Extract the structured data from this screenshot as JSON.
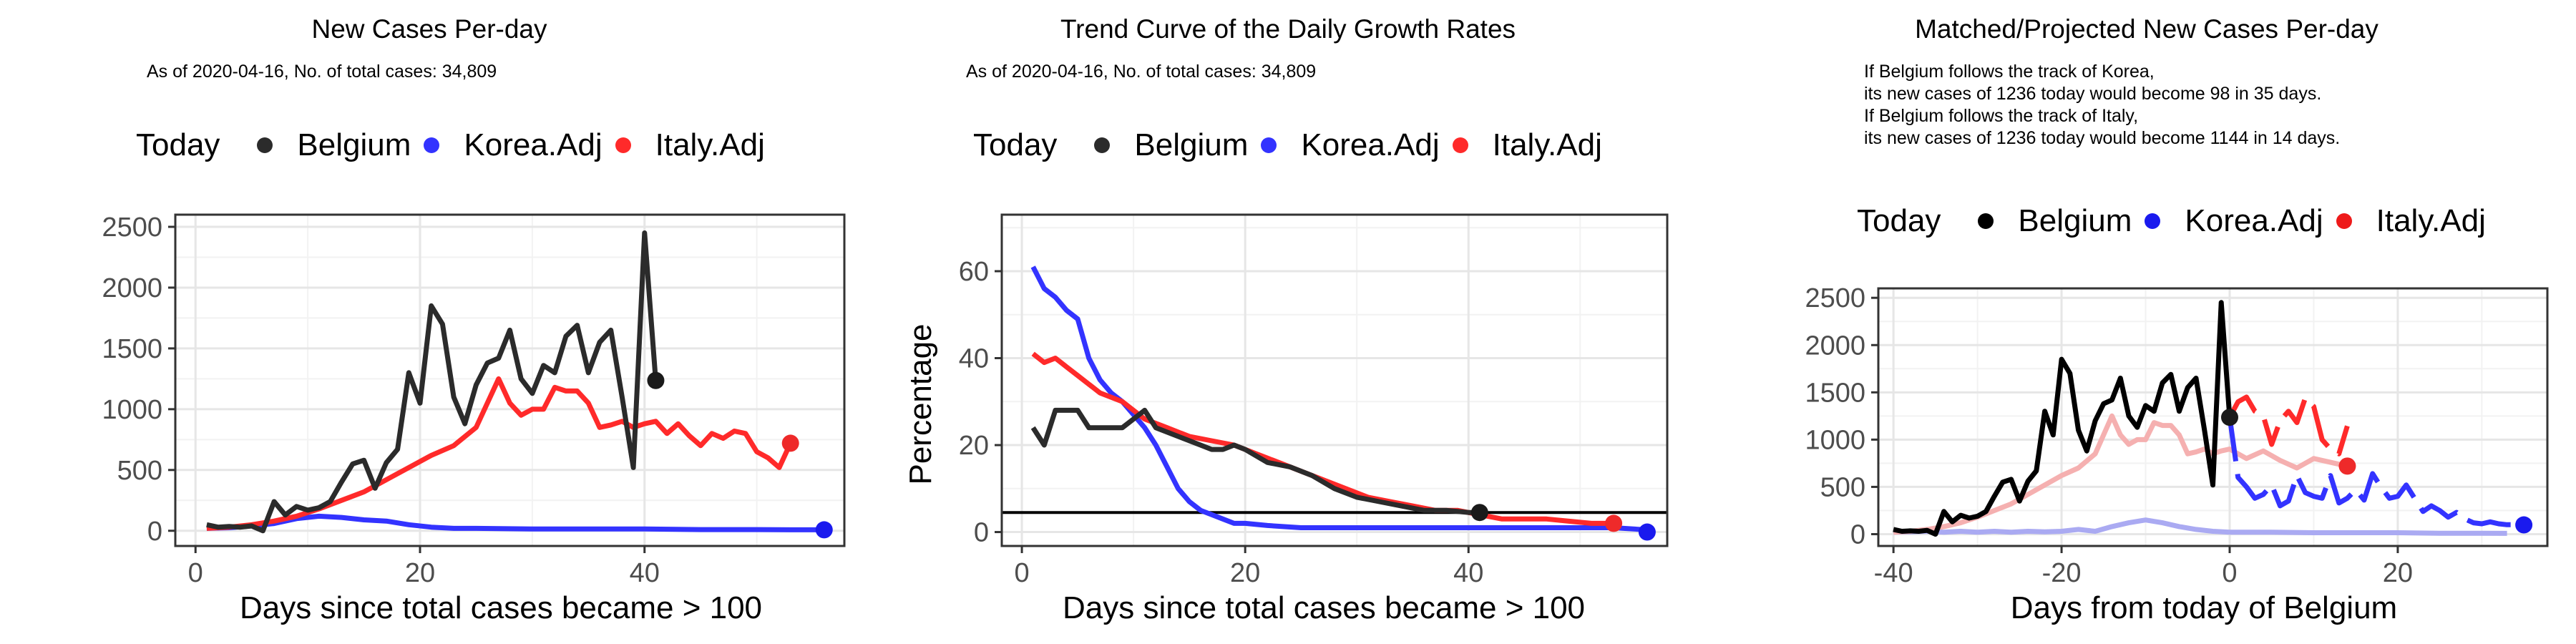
{
  "legend_labels": {
    "today": "Today",
    "belgium": "Belgium",
    "korea": "Korea.Adj",
    "italy": "Italy.Adj"
  },
  "colors": {
    "belgium": "#2b2b2b",
    "belgium_solid": "#000000",
    "korea": "#3333ff",
    "korea_light": "#aaaaf2",
    "italy": "#ff2a2a",
    "italy_light": "#f5b0b0",
    "grid_major": "#e6e6e6",
    "grid_minor": "#f2f2f2"
  },
  "chart_data": [
    {
      "type": "line",
      "title": "New Cases Per-day",
      "subtitle": "As of 2020-04-16, No. of total cases: 34,809",
      "xlabel": "Days since total cases became > 100",
      "ylabel": "",
      "xlim": [
        -1.8,
        57.8
      ],
      "ylim": [
        -125,
        2600
      ],
      "xticks": [
        0,
        20,
        40
      ],
      "yticks": [
        0,
        500,
        1000,
        1500,
        2000,
        2500
      ],
      "series": [
        {
          "name": "Belgium",
          "role": "belgium",
          "x": [
            1,
            2,
            3,
            4,
            5,
            6,
            7,
            8,
            9,
            10,
            11,
            12,
            13,
            14,
            15,
            16,
            17,
            18,
            19,
            20,
            21,
            22,
            23,
            24,
            25,
            26,
            27,
            28,
            29,
            30,
            31,
            32,
            33,
            34,
            35,
            36,
            37,
            38,
            39,
            40,
            41
          ],
          "y": [
            50,
            30,
            35,
            30,
            40,
            0,
            240,
            130,
            200,
            170,
            190,
            240,
            400,
            550,
            580,
            350,
            560,
            670,
            1300,
            1050,
            1850,
            1700,
            1100,
            880,
            1200,
            1380,
            1420,
            1650,
            1250,
            1130,
            1360,
            1300,
            1600,
            1690,
            1300,
            1550,
            1650,
            1100,
            520,
            2450,
            1236
          ]
        },
        {
          "name": "Korea.Adj",
          "role": "korea",
          "x": [
            1,
            3,
            5,
            7,
            9,
            11,
            13,
            15,
            17,
            19,
            21,
            23,
            25,
            30,
            35,
            40,
            45,
            50,
            53,
            56
          ],
          "y": [
            20,
            25,
            40,
            60,
            100,
            120,
            110,
            90,
            80,
            50,
            30,
            20,
            20,
            15,
            15,
            15,
            10,
            10,
            8,
            8
          ]
        },
        {
          "name": "Italy.Adj",
          "role": "italy",
          "x": [
            1,
            3,
            5,
            7,
            9,
            11,
            13,
            15,
            17,
            19,
            21,
            23,
            25,
            27,
            28,
            29,
            30,
            31,
            32,
            33,
            34,
            35,
            36,
            37,
            38,
            39,
            40,
            41,
            42,
            43,
            44,
            45,
            46,
            47,
            48,
            49,
            50,
            51,
            52,
            53
          ],
          "y": [
            20,
            30,
            50,
            80,
            120,
            180,
            250,
            320,
            420,
            520,
            620,
            700,
            850,
            1250,
            1050,
            950,
            1000,
            1000,
            1180,
            1150,
            1150,
            1050,
            850,
            870,
            900,
            850,
            880,
            900,
            800,
            880,
            780,
            700,
            800,
            760,
            820,
            800,
            650,
            600,
            520,
            720
          ]
        }
      ],
      "today_points": [
        {
          "name": "Belgium",
          "x": 41,
          "y": 1236
        },
        {
          "name": "Korea.Adj",
          "x": 56,
          "y": 8
        },
        {
          "name": "Italy.Adj",
          "x": 53,
          "y": 720
        }
      ]
    },
    {
      "type": "line",
      "title": "Trend Curve of the Daily Growth Rates",
      "subtitle": "As of 2020-04-16, No. of total cases: 34,809",
      "xlabel": "Days since total cases became > 100",
      "ylabel": "Percentage",
      "xlim": [
        -1.8,
        57.8
      ],
      "ylim": [
        -3.2,
        73
      ],
      "xticks": [
        0,
        20,
        40
      ],
      "yticks": [
        0,
        20,
        40,
        60
      ],
      "hline": 4.5,
      "series": [
        {
          "name": "Belgium",
          "role": "belgium",
          "x": [
            1,
            2,
            3,
            4,
            5,
            6,
            7,
            8,
            9,
            10,
            11,
            12,
            14,
            16,
            17,
            18,
            19,
            20,
            22,
            24,
            26,
            28,
            30,
            32,
            34,
            36,
            38,
            40,
            41
          ],
          "y": [
            24,
            20,
            28,
            28,
            28,
            24,
            24,
            24,
            24,
            26,
            28,
            24,
            22,
            20,
            19,
            19,
            20,
            19,
            16,
            15,
            13,
            10,
            8,
            7,
            6,
            5,
            5,
            4.5,
            4.5
          ]
        },
        {
          "name": "Korea.Adj",
          "role": "korea",
          "x": [
            1,
            2,
            3,
            4,
            5,
            6,
            7,
            8,
            9,
            10,
            11,
            12,
            13,
            14,
            15,
            16,
            17,
            18,
            19,
            20,
            22,
            25,
            30,
            35,
            40,
            45,
            50,
            53,
            56
          ],
          "y": [
            61,
            56,
            54,
            51,
            49,
            40,
            35,
            32,
            30,
            27,
            24,
            20,
            15,
            10,
            7,
            5,
            4,
            3,
            2,
            2,
            1.5,
            1,
            1,
            1,
            1,
            1,
            1,
            1,
            0.5
          ]
        },
        {
          "name": "Italy.Adj",
          "role": "italy",
          "x": [
            1,
            2,
            3,
            4,
            5,
            7,
            9,
            11,
            13,
            15,
            17,
            19,
            21,
            23,
            25,
            27,
            29,
            31,
            33,
            35,
            37,
            39,
            41,
            43,
            45,
            47,
            49,
            51,
            53
          ],
          "y": [
            41,
            39,
            40,
            38,
            36,
            32,
            30,
            26,
            24,
            22,
            21,
            20,
            18,
            16,
            14,
            12,
            10,
            8,
            7,
            6,
            5,
            5,
            4,
            3,
            3,
            3,
            2.5,
            2,
            2
          ]
        }
      ],
      "today_points": [
        {
          "name": "Belgium",
          "x": 41,
          "y": 4.5
        },
        {
          "name": "Korea.Adj",
          "x": 56,
          "y": 0
        },
        {
          "name": "Italy.Adj",
          "x": 53,
          "y": 2
        }
      ]
    },
    {
      "type": "line",
      "title": "Matched/Projected New Cases Per-day",
      "subtitle_lines": [
        "If Belgium follows the track of Korea,",
        "its new cases of 1236 today would become 98 in 35 days.",
        "If Belgium follows the track of Italy,",
        "its new cases of 1236 today would become 1144 in 14 days."
      ],
      "xlabel": "Days from today of Belgium",
      "ylabel": "",
      "xlim": [
        -41.8,
        37.8
      ],
      "ylim": [
        -125,
        2600
      ],
      "xticks": [
        -40,
        -20,
        0,
        20
      ],
      "yticks": [
        0,
        500,
        1000,
        1500,
        2000,
        2500
      ],
      "series": [
        {
          "name": "Belgium",
          "role": "belgium_solid",
          "x": [
            -40,
            -39,
            -38,
            -37,
            -36,
            -35,
            -34,
            -33,
            -32,
            -31,
            -30,
            -29,
            -28,
            -27,
            -26,
            -25,
            -24,
            -23,
            -22,
            -21,
            -20,
            -19,
            -18,
            -17,
            -16,
            -15,
            -14,
            -13,
            -12,
            -11,
            -10,
            -9,
            -8,
            -7,
            -6,
            -5,
            -4,
            -3,
            -2,
            -1,
            0
          ],
          "y": [
            50,
            30,
            35,
            30,
            40,
            0,
            240,
            130,
            200,
            170,
            190,
            240,
            400,
            550,
            580,
            350,
            560,
            670,
            1300,
            1050,
            1850,
            1700,
            1100,
            880,
            1200,
            1380,
            1420,
            1650,
            1250,
            1130,
            1360,
            1300,
            1600,
            1690,
            1300,
            1550,
            1650,
            1100,
            520,
            2450,
            1236
          ]
        },
        {
          "name": "Korea.Adj",
          "role": "korea_light",
          "x": [
            -40,
            -38,
            -36,
            -34,
            -32,
            -30,
            -28,
            -26,
            -24,
            -22,
            -20,
            -18,
            -16,
            -14,
            -12,
            -10,
            -8,
            -6,
            -4,
            -2,
            0,
            5,
            10,
            15,
            20,
            25,
            30,
            33
          ],
          "y": [
            20,
            25,
            30,
            20,
            30,
            20,
            30,
            20,
            30,
            25,
            30,
            50,
            30,
            80,
            120,
            150,
            120,
            80,
            50,
            30,
            20,
            20,
            15,
            15,
            15,
            10,
            10,
            8
          ]
        },
        {
          "name": "Italy.Adj",
          "role": "italy_light",
          "x": [
            -40,
            -38,
            -36,
            -34,
            -32,
            -30,
            -28,
            -26,
            -24,
            -22,
            -20,
            -18,
            -16,
            -14,
            -13,
            -12,
            -11,
            -10,
            -9,
            -8,
            -7,
            -6,
            -5,
            -4,
            -3,
            -2,
            -1,
            0,
            2,
            4,
            6,
            8,
            10,
            12,
            14
          ],
          "y": [
            20,
            30,
            50,
            80,
            120,
            180,
            250,
            320,
            420,
            520,
            620,
            700,
            850,
            1250,
            1050,
            950,
            1000,
            1000,
            1180,
            1150,
            1150,
            1050,
            850,
            870,
            900,
            850,
            880,
            900,
            800,
            880,
            780,
            700,
            800,
            760,
            720
          ]
        }
      ],
      "projections": [
        {
          "name": "Korea.Adj",
          "role": "korea",
          "x": [
            0,
            1,
            2,
            3,
            4,
            5,
            6,
            7,
            8,
            9,
            10,
            11,
            12,
            13,
            14,
            15,
            16,
            17,
            18,
            19,
            20,
            21,
            22,
            23,
            24,
            25,
            26,
            27,
            28,
            29,
            30,
            31,
            32,
            33,
            34,
            35
          ],
          "y": [
            1236,
            600,
            500,
            380,
            420,
            520,
            300,
            350,
            620,
            440,
            400,
            380,
            620,
            330,
            380,
            470,
            360,
            640,
            500,
            380,
            400,
            520,
            380,
            240,
            300,
            250,
            180,
            230,
            160,
            120,
            110,
            130,
            110,
            100,
            100,
            98
          ]
        },
        {
          "name": "Italy.Adj",
          "role": "italy",
          "x": [
            0,
            1,
            2,
            3,
            4,
            5,
            6,
            7,
            8,
            9,
            10,
            11,
            12,
            13,
            14
          ],
          "y": [
            1236,
            1400,
            1450,
            1300,
            1250,
            950,
            1200,
            1300,
            1180,
            1440,
            1350,
            1000,
            900,
            850,
            1144
          ]
        }
      ],
      "today_points": [
        {
          "name": "Belgium",
          "x": 0,
          "y": 1236
        },
        {
          "name": "Korea.Adj",
          "x": 35,
          "y": 98
        },
        {
          "name": "Italy.Adj",
          "x": 14,
          "y": 720
        }
      ]
    }
  ]
}
